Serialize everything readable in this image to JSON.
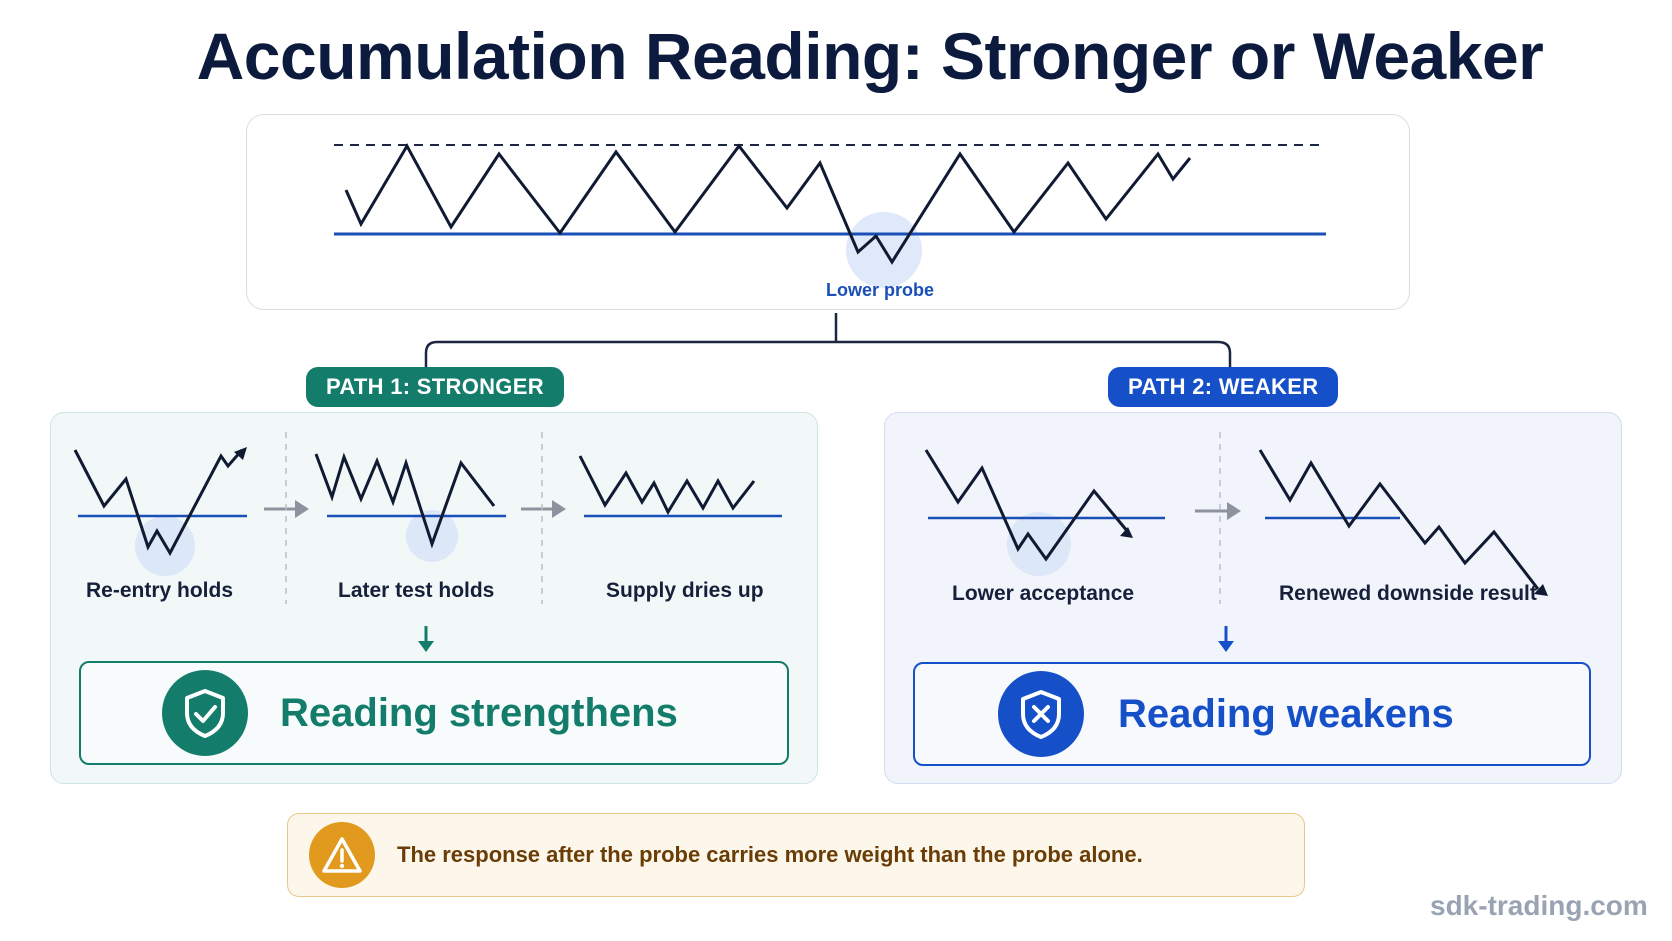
{
  "title": "Accumulation Reading: Stronger or Weaker",
  "top_panel": {
    "probe_label": "Lower probe"
  },
  "path_strong": {
    "badge": "PATH 1: STRONGER",
    "steps": [
      "Re-entry holds",
      "Later test holds",
      "Supply dries up"
    ],
    "result": "Reading strengthens",
    "color": "#137c6a"
  },
  "path_weak": {
    "badge": "PATH 2: WEAKER",
    "steps": [
      "Lower acceptance",
      "Renewed downside result"
    ],
    "result": "Reading weakens",
    "color": "#1550c9"
  },
  "note": "The response after the probe carries more weight than the probe alone.",
  "watermark": "sdk-trading.com",
  "icons": {
    "strong": "shield-check-icon",
    "weak": "shield-x-icon",
    "note": "warning-triangle-icon"
  }
}
